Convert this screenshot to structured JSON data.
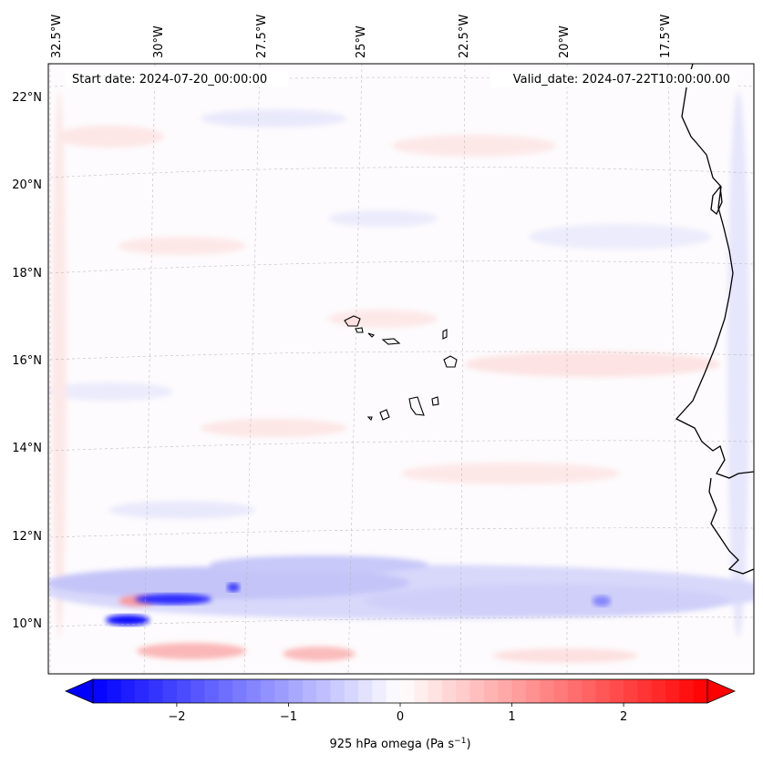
{
  "header": {
    "start_date": "Start date: 2024-07-20_00:00:00",
    "valid_date": "Valid_date: 2024-07-22T10:00:00.00"
  },
  "axes": {
    "lon_labels": [
      "32.5°W",
      "30°W",
      "27.5°W",
      "25°W",
      "22.5°W",
      "20°W",
      "17.5°W"
    ],
    "lat_labels": [
      "22°N",
      "20°N",
      "18°N",
      "16°N",
      "14°N",
      "12°N",
      "10°N"
    ]
  },
  "colorbar": {
    "ticks": [
      "−2",
      "−1",
      "0",
      "1",
      "2"
    ],
    "label": "925 hPa omega (Pa s",
    "label_exp": "−1",
    "label_close": ")",
    "vmin": -2.75,
    "vmax": 2.75,
    "extend": "both",
    "cmap": "bwr",
    "colors": {
      "negative": "#0000ff",
      "zero": "#ffffff",
      "positive": "#ff0000"
    }
  },
  "map": {
    "projection": "lambert-conformal",
    "field": "925 hPa omega",
    "units": "Pa s^-1",
    "extent_lon": [
      -32.5,
      -16.0
    ],
    "extent_lat": [
      9.0,
      22.5
    ]
  }
}
